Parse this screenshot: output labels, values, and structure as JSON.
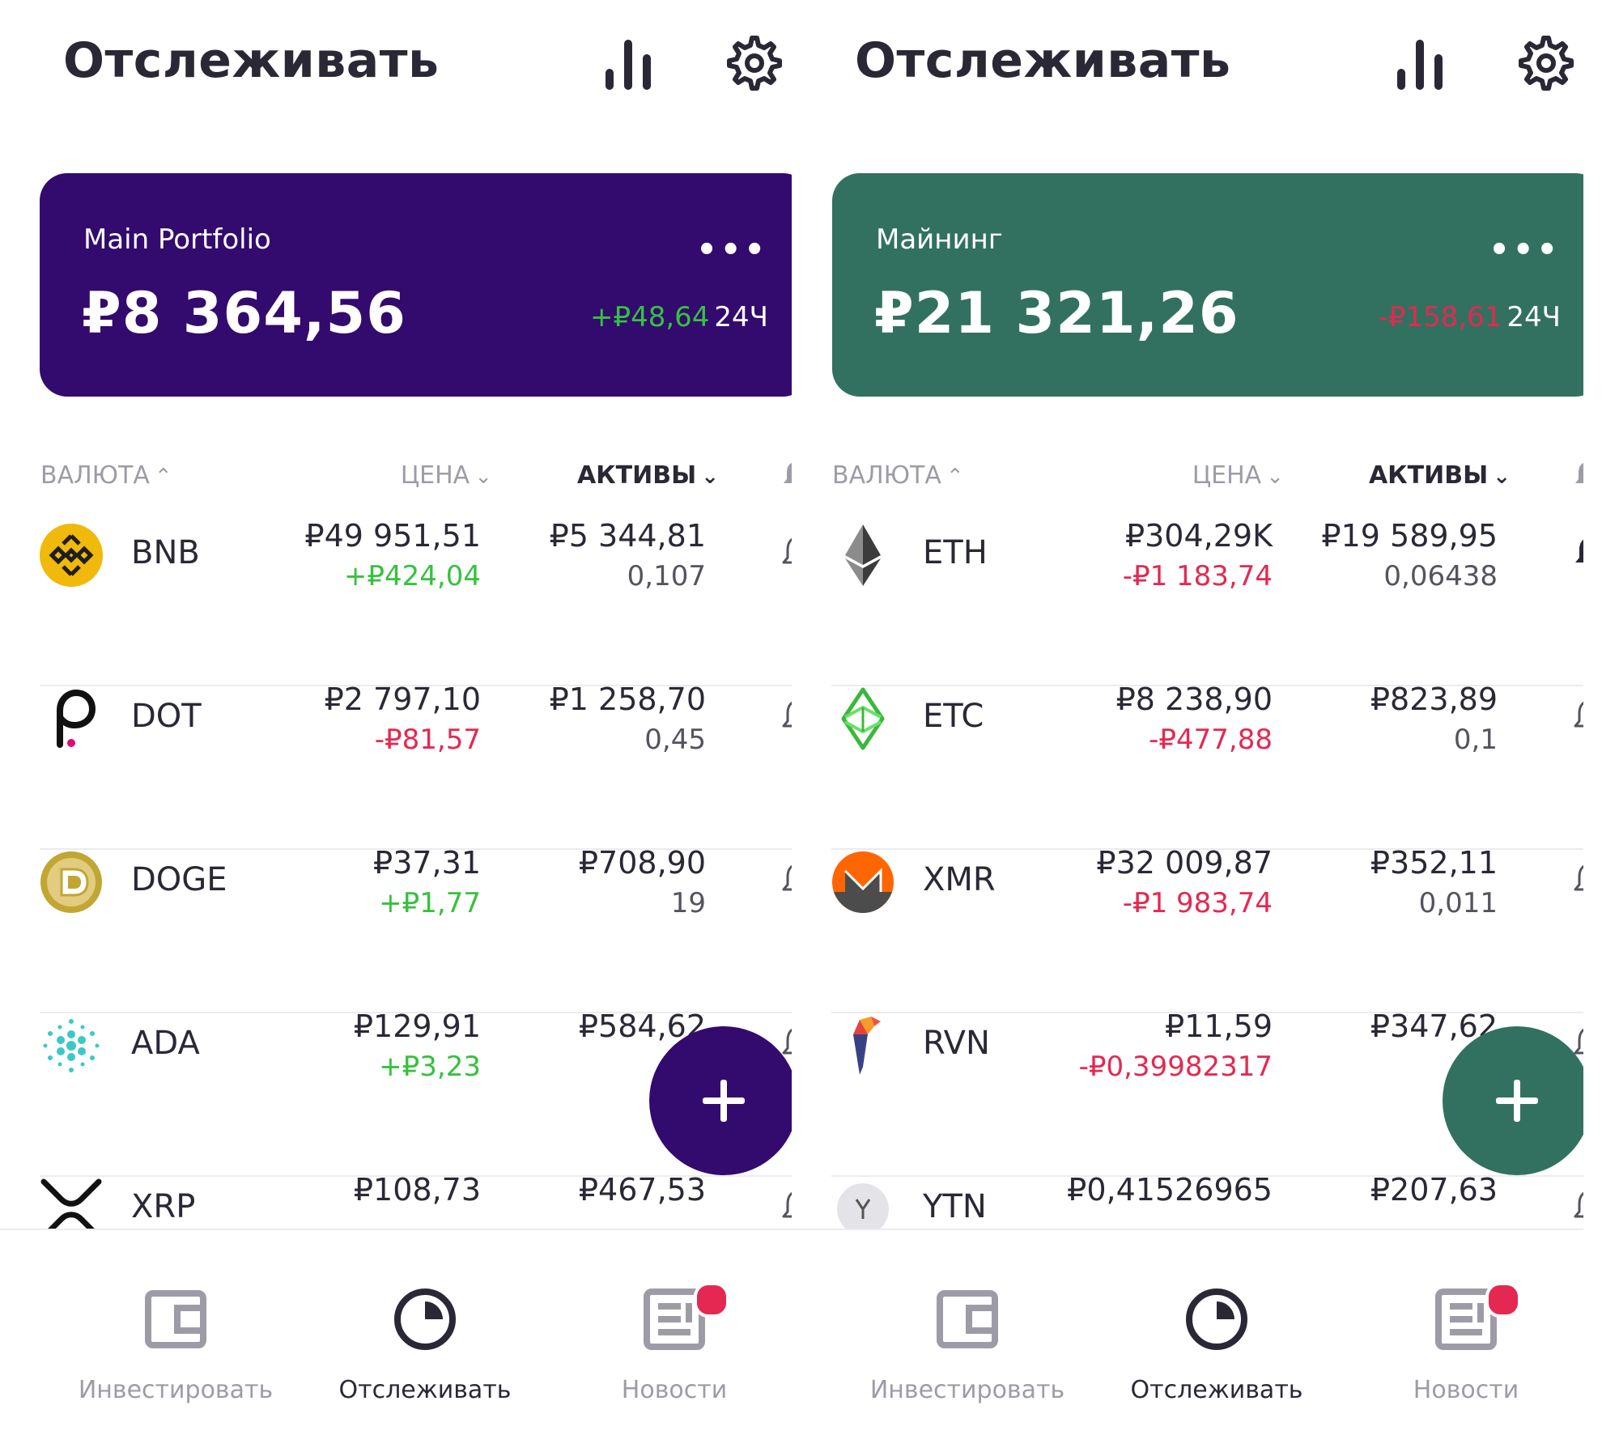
{
  "colors": {
    "text_dark": "#2b2836",
    "text_muted": "#9d9ca6",
    "positive": "#35c23f",
    "negative": "#e52851"
  },
  "screens": [
    {
      "header": {
        "title": "Отслеживать"
      },
      "portfolio": {
        "name": "Main Portfolio",
        "value": "₽8 364,56",
        "change": "+₽48,64",
        "change_direction": "up",
        "period": "24Ч",
        "more": "•••",
        "color": "#330a6e"
      },
      "columns": {
        "currency": "ВАЛЮТА",
        "price": "ЦЕНА",
        "assets": "АКТИВЫ"
      },
      "coins": [
        {
          "symbol": "BNB",
          "logo": "bnb-icon",
          "price": "₽49 951,51",
          "change": "+₽424,04",
          "direction": "up",
          "holding_value": "₽5 344,81",
          "holding_qty": "0,107",
          "alert_active": false
        },
        {
          "symbol": "DOT",
          "logo": "polkadot-icon",
          "price": "₽2 797,10",
          "change": "-₽81,57",
          "direction": "down",
          "holding_value": "₽1 258,70",
          "holding_qty": "0,45",
          "alert_active": false
        },
        {
          "symbol": "DOGE",
          "logo": "dogecoin-icon",
          "price": "₽37,31",
          "change": "+₽1,77",
          "direction": "up",
          "holding_value": "₽708,90",
          "holding_qty": "19",
          "alert_active": false
        },
        {
          "symbol": "ADA",
          "logo": "cardano-icon",
          "price": "₽129,91",
          "change": "+₽3,23",
          "direction": "up",
          "holding_value": "₽584,62",
          "holding_qty": "",
          "alert_active": false
        },
        {
          "symbol": "XRP",
          "logo": "xrp-icon",
          "price": "₽108,73",
          "change": "",
          "direction": "down",
          "holding_value": "₽467,53",
          "holding_qty": "",
          "alert_active": false
        }
      ],
      "fab": {
        "label": "+",
        "color": "#330a6e"
      },
      "nav": [
        {
          "label": "Инвестировать",
          "icon": "wallet-icon",
          "active": false,
          "badge": false
        },
        {
          "label": "Отслеживать",
          "icon": "pie-clock-icon",
          "active": true,
          "badge": false
        },
        {
          "label": "Новости",
          "icon": "news-icon",
          "active": false,
          "badge": true
        }
      ]
    },
    {
      "header": {
        "title": "Отслеживать"
      },
      "portfolio": {
        "name": "Майнинг",
        "value": "₽21 321,26",
        "change": "-₽158,61",
        "change_direction": "down",
        "period": "24Ч",
        "more": "•••",
        "color": "#327160"
      },
      "columns": {
        "currency": "ВАЛЮТА",
        "price": "ЦЕНА",
        "assets": "АКТИВЫ"
      },
      "coins": [
        {
          "symbol": "ETH",
          "logo": "ethereum-icon",
          "price": "₽304,29K",
          "change": "-₽1 183,74",
          "direction": "down",
          "holding_value": "₽19 589,95",
          "holding_qty": "0,06438",
          "alert_active": true
        },
        {
          "symbol": "ETC",
          "logo": "ethereum-classic-icon",
          "price": "₽8 238,90",
          "change": "-₽477,88",
          "direction": "down",
          "holding_value": "₽823,89",
          "holding_qty": "0,1",
          "alert_active": false
        },
        {
          "symbol": "XMR",
          "logo": "monero-icon",
          "price": "₽32 009,87",
          "change": "-₽1 983,74",
          "direction": "down",
          "holding_value": "₽352,11",
          "holding_qty": "0,011",
          "alert_active": false
        },
        {
          "symbol": "RVN",
          "logo": "ravencoin-icon",
          "price": "₽11,59",
          "change": "-₽0,39982317",
          "direction": "down",
          "holding_value": "₽347,62",
          "holding_qty": "",
          "alert_active": false
        },
        {
          "symbol": "YTN",
          "logo": "yenten-icon",
          "price": "₽0,41526965",
          "change": "",
          "direction": "down",
          "holding_value": "₽207,63",
          "holding_qty": "",
          "alert_active": false
        }
      ],
      "fab": {
        "label": "+",
        "color": "#327160"
      },
      "nav": [
        {
          "label": "Инвестировать",
          "icon": "wallet-icon",
          "active": false,
          "badge": false
        },
        {
          "label": "Отслеживать",
          "icon": "pie-clock-icon",
          "active": true,
          "badge": false
        },
        {
          "label": "Новости",
          "icon": "news-icon",
          "active": false,
          "badge": true
        }
      ]
    }
  ]
}
